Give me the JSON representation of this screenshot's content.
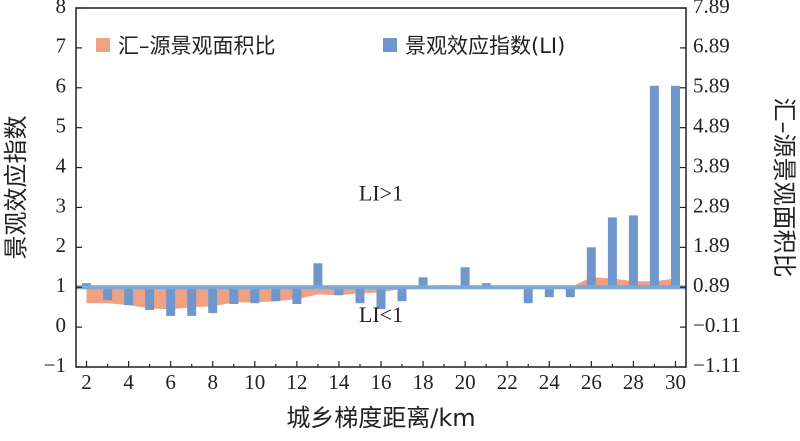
{
  "chart_data": {
    "type": "bar",
    "xlabel": "城乡梯度距离/km",
    "ylabel_left": "景观效应指数",
    "ylabel_right": "汇–源景观面积比",
    "xlim": [
      1.5,
      30.5
    ],
    "ylim_left": [
      -1,
      8
    ],
    "ylim_right": [
      -1.11,
      7.89
    ],
    "x_ticks": [
      "2",
      "4",
      "6",
      "8",
      "10",
      "12",
      "14",
      "16",
      "18",
      "20",
      "22",
      "24",
      "26",
      "28",
      "30"
    ],
    "y_ticks_left": [
      "−1",
      "0",
      "1",
      "2",
      "3",
      "4",
      "5",
      "6",
      "7",
      "8"
    ],
    "y_ticks_right": [
      "−1.11",
      "−0.11",
      "0.89",
      "1.89",
      "2.89",
      "3.89",
      "4.89",
      "5.89",
      "6.89",
      "7.89"
    ],
    "reference_line": 1,
    "reference_color": "#7ba7d9",
    "legend": [
      {
        "label": "汇–源景观面积比",
        "color": "#efa283"
      },
      {
        "label": "景观效应指数(LI)",
        "color": "#7097cc"
      }
    ],
    "annotations": [
      {
        "text": "LI>1",
        "x": 16,
        "y": 3.3
      },
      {
        "text": "LI<1",
        "x": 16,
        "y": 0.25
      }
    ],
    "series": [
      {
        "name": "汇–源景观面积比",
        "kind": "area",
        "color": "#efa283",
        "x": [
          2,
          3,
          4,
          5,
          6,
          7,
          8,
          9,
          10,
          11,
          12,
          13,
          14,
          15,
          16,
          17,
          18,
          19,
          20,
          21,
          22,
          23,
          24,
          25,
          26,
          27,
          28,
          29,
          30
        ],
        "values": [
          0.49,
          0.49,
          0.44,
          0.36,
          0.34,
          0.39,
          0.41,
          0.51,
          0.51,
          0.54,
          0.59,
          0.71,
          0.69,
          0.74,
          0.76,
          0.85,
          0.89,
          0.89,
          0.89,
          0.89,
          0.89,
          0.89,
          0.89,
          0.89,
          1.14,
          1.11,
          1.04,
          1.04,
          1.11
        ]
      },
      {
        "name": "景观效应指数(LI)",
        "kind": "bar",
        "color": "#7097cc",
        "x": [
          2,
          3,
          4,
          5,
          6,
          7,
          8,
          9,
          10,
          11,
          12,
          13,
          14,
          15,
          16,
          17,
          18,
          19,
          20,
          21,
          22,
          23,
          24,
          25,
          26,
          27,
          28,
          29,
          30
        ],
        "values": [
          1.1,
          0.68,
          0.55,
          0.43,
          0.28,
          0.28,
          0.35,
          0.58,
          0.6,
          0.65,
          0.58,
          1.6,
          0.8,
          0.6,
          0.45,
          0.65,
          1.25,
          1.05,
          1.5,
          1.1,
          1.0,
          0.6,
          0.75,
          0.75,
          2.0,
          2.75,
          2.8,
          6.05,
          6.05
        ]
      }
    ]
  }
}
